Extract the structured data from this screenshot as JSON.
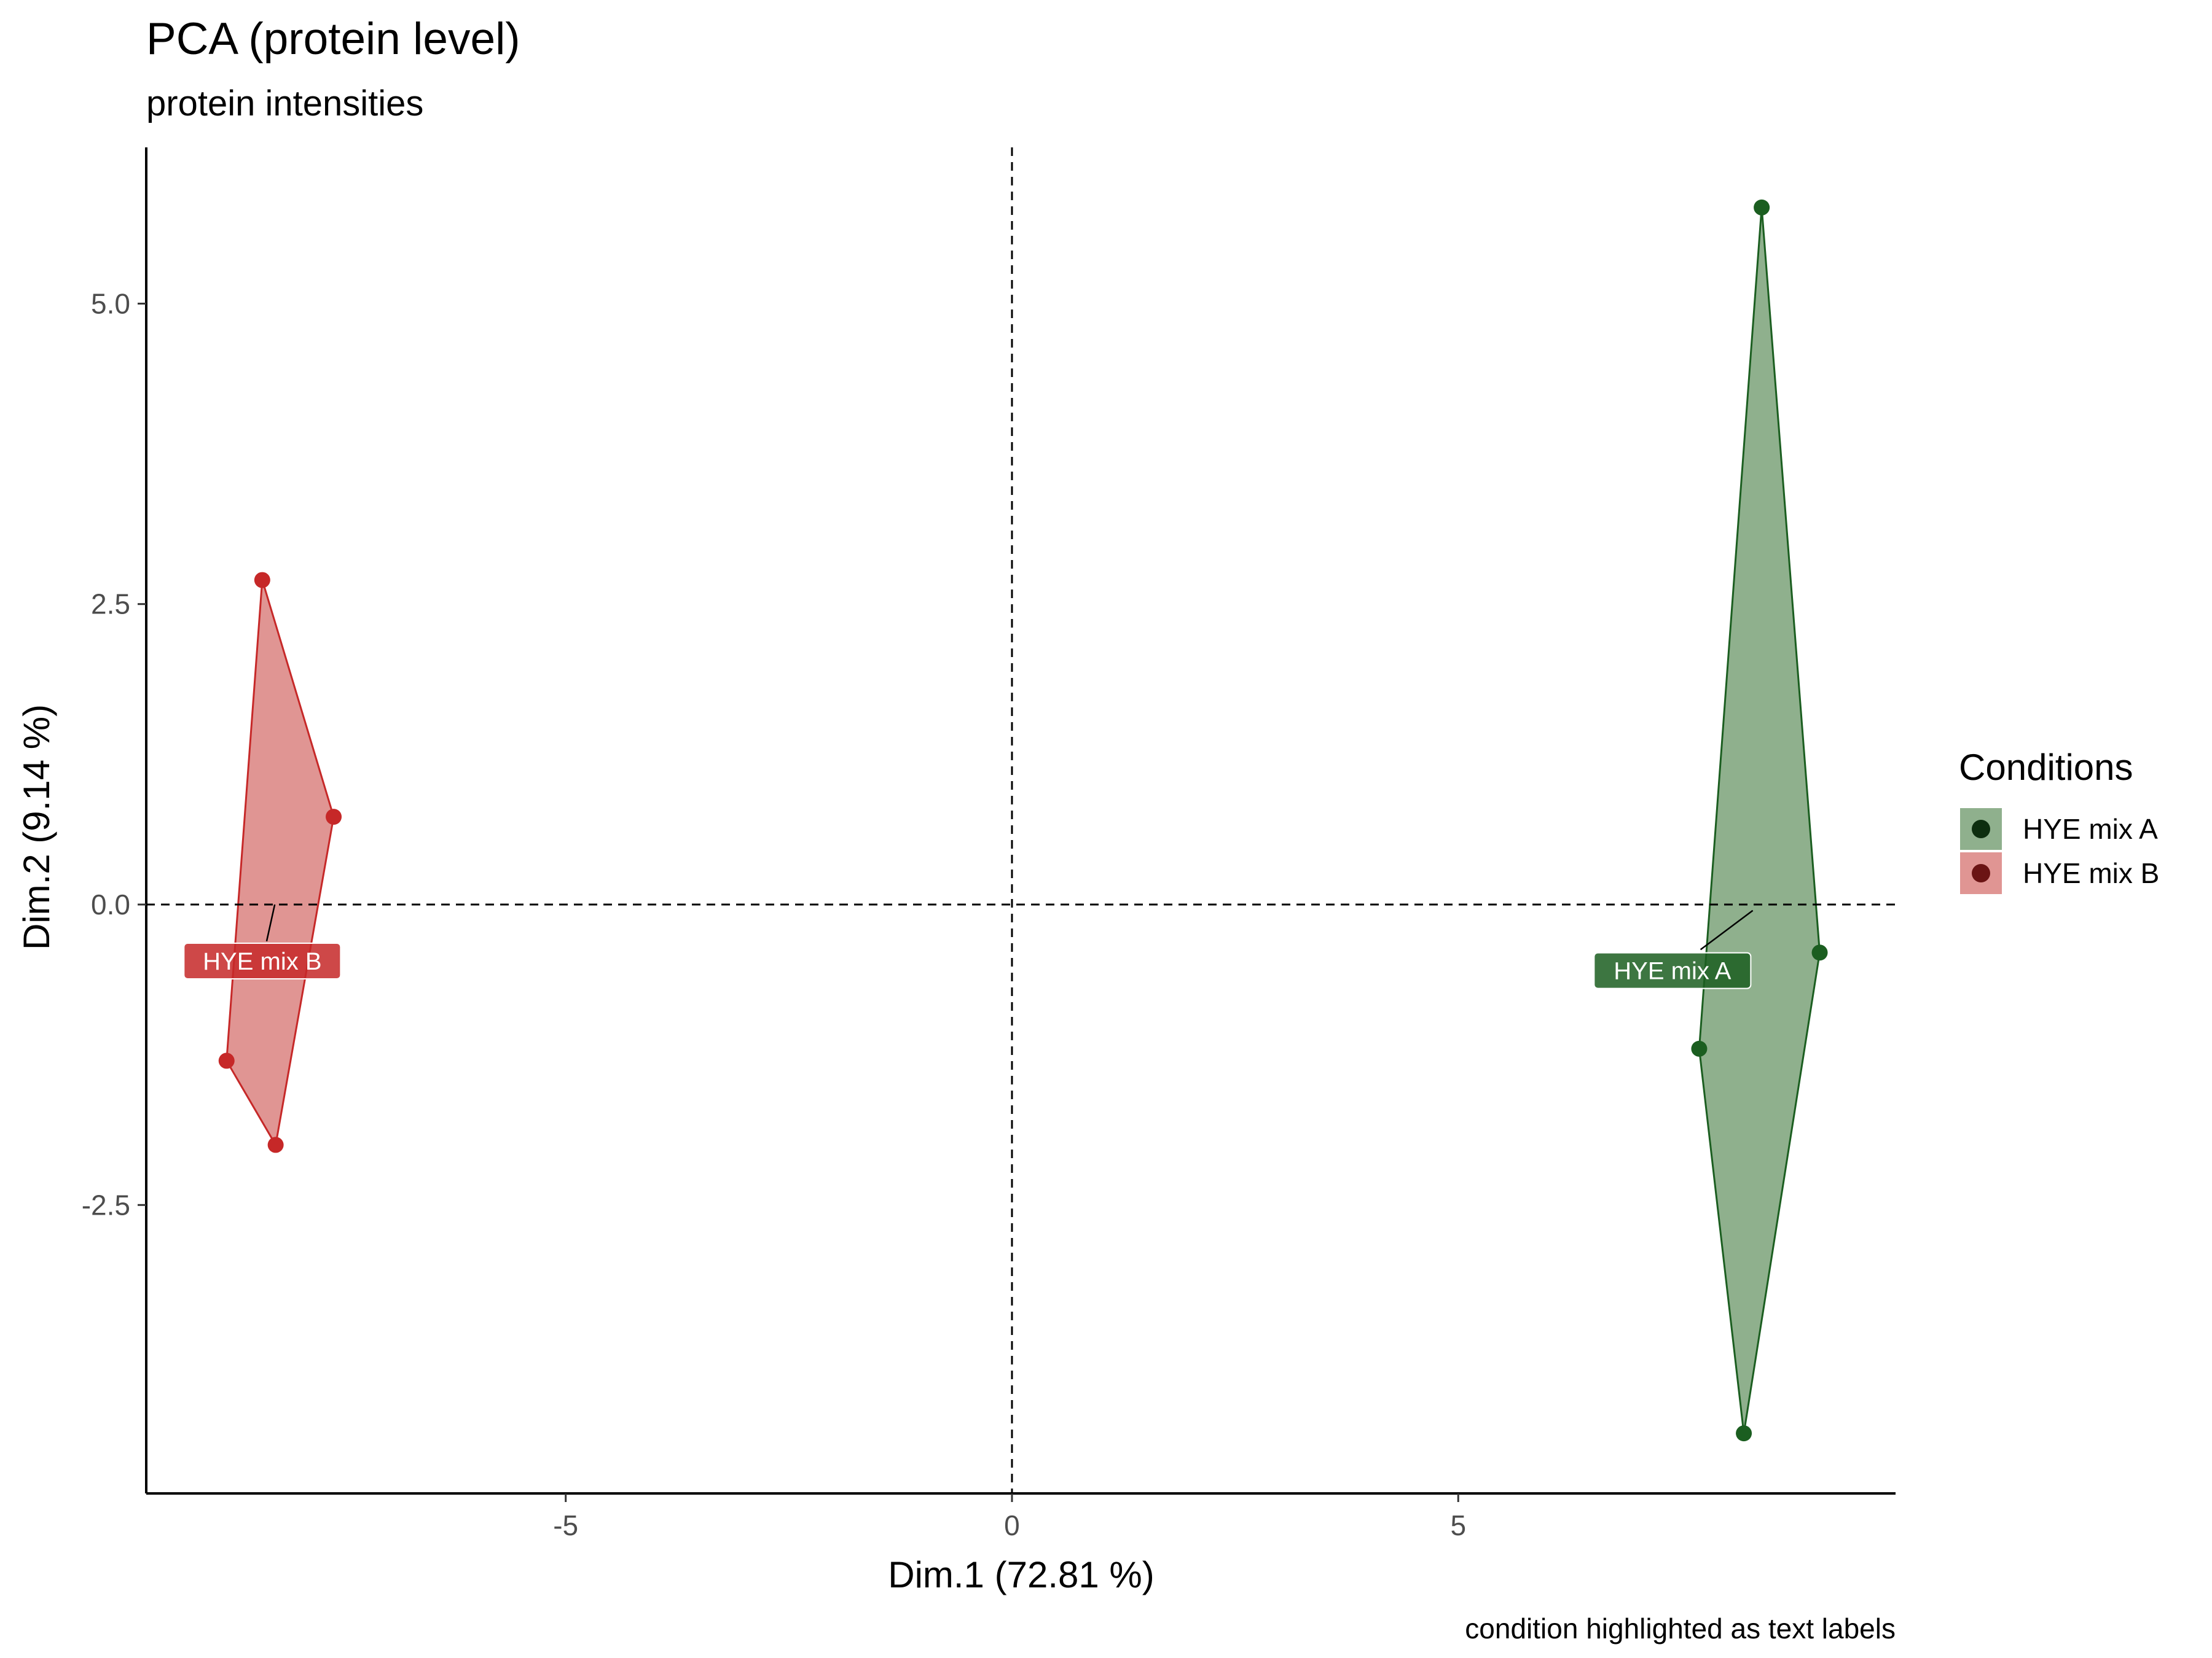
{
  "chart_data": {
    "type": "scatter",
    "title": "PCA (protein level)",
    "subtitle": "protein intensities",
    "xlabel": "Dim.1 (72.81 %)",
    "ylabel": "Dim.2 (9.14 %)",
    "caption": "condition highlighted as text labels",
    "xlim": [
      -9.7,
      9.9
    ],
    "ylim": [
      -4.9,
      6.3
    ],
    "x_ticks": [
      {
        "value": -5,
        "label": "-5"
      },
      {
        "value": 0,
        "label": "0"
      },
      {
        "value": 5,
        "label": "5"
      }
    ],
    "y_ticks": [
      {
        "value": -2.5,
        "label": "-2.5"
      },
      {
        "value": 0,
        "label": "0.0"
      },
      {
        "value": 2.5,
        "label": "2.5"
      },
      {
        "value": 5,
        "label": "5.0"
      }
    ],
    "reference_lines": {
      "x": 0,
      "y": 0,
      "style": "dashed"
    },
    "grid": false,
    "legend": {
      "title": "Conditions",
      "position": "right"
    },
    "series": [
      {
        "name": "HYE mix A",
        "color": "#1b5e20",
        "fill": "#8fb08d",
        "points": [
          {
            "x": 8.4,
            "y": 5.8
          },
          {
            "x": 9.05,
            "y": -0.4
          },
          {
            "x": 8.2,
            "y": -4.4
          },
          {
            "x": 7.7,
            "y": -1.2
          }
        ],
        "hull": [
          [
            8.4,
            5.8
          ],
          [
            9.05,
            -0.4
          ],
          [
            8.2,
            -4.4
          ],
          [
            7.7,
            -1.2
          ]
        ],
        "centroid": {
          "x": 8.3,
          "y": -0.05
        },
        "text_label": {
          "text": "HYE mix A",
          "x": 7.4,
          "y": -0.55
        }
      },
      {
        "name": "HYE mix B",
        "color": "#c62828",
        "fill": "#e09593",
        "points": [
          {
            "x": -8.4,
            "y": 2.7
          },
          {
            "x": -7.6,
            "y": 0.73
          },
          {
            "x": -8.8,
            "y": -1.3
          },
          {
            "x": -8.25,
            "y": -2.0
          }
        ],
        "hull": [
          [
            -8.4,
            2.7
          ],
          [
            -7.6,
            0.73
          ],
          [
            -8.25,
            -2.0
          ],
          [
            -8.8,
            -1.3
          ]
        ],
        "centroid": {
          "x": -8.26,
          "y": 0.0
        },
        "text_label": {
          "text": "HYE mix B",
          "x": -8.4,
          "y": -0.47
        }
      }
    ]
  },
  "colors": {
    "axis": "#000000",
    "tick_text": "#4d4d4d",
    "legend_key_bg_a": "#8fb08d",
    "legend_key_dot_a": "#0d2e0f",
    "legend_key_bg_b": "#e09593",
    "legend_key_dot_b": "#6b1414"
  }
}
